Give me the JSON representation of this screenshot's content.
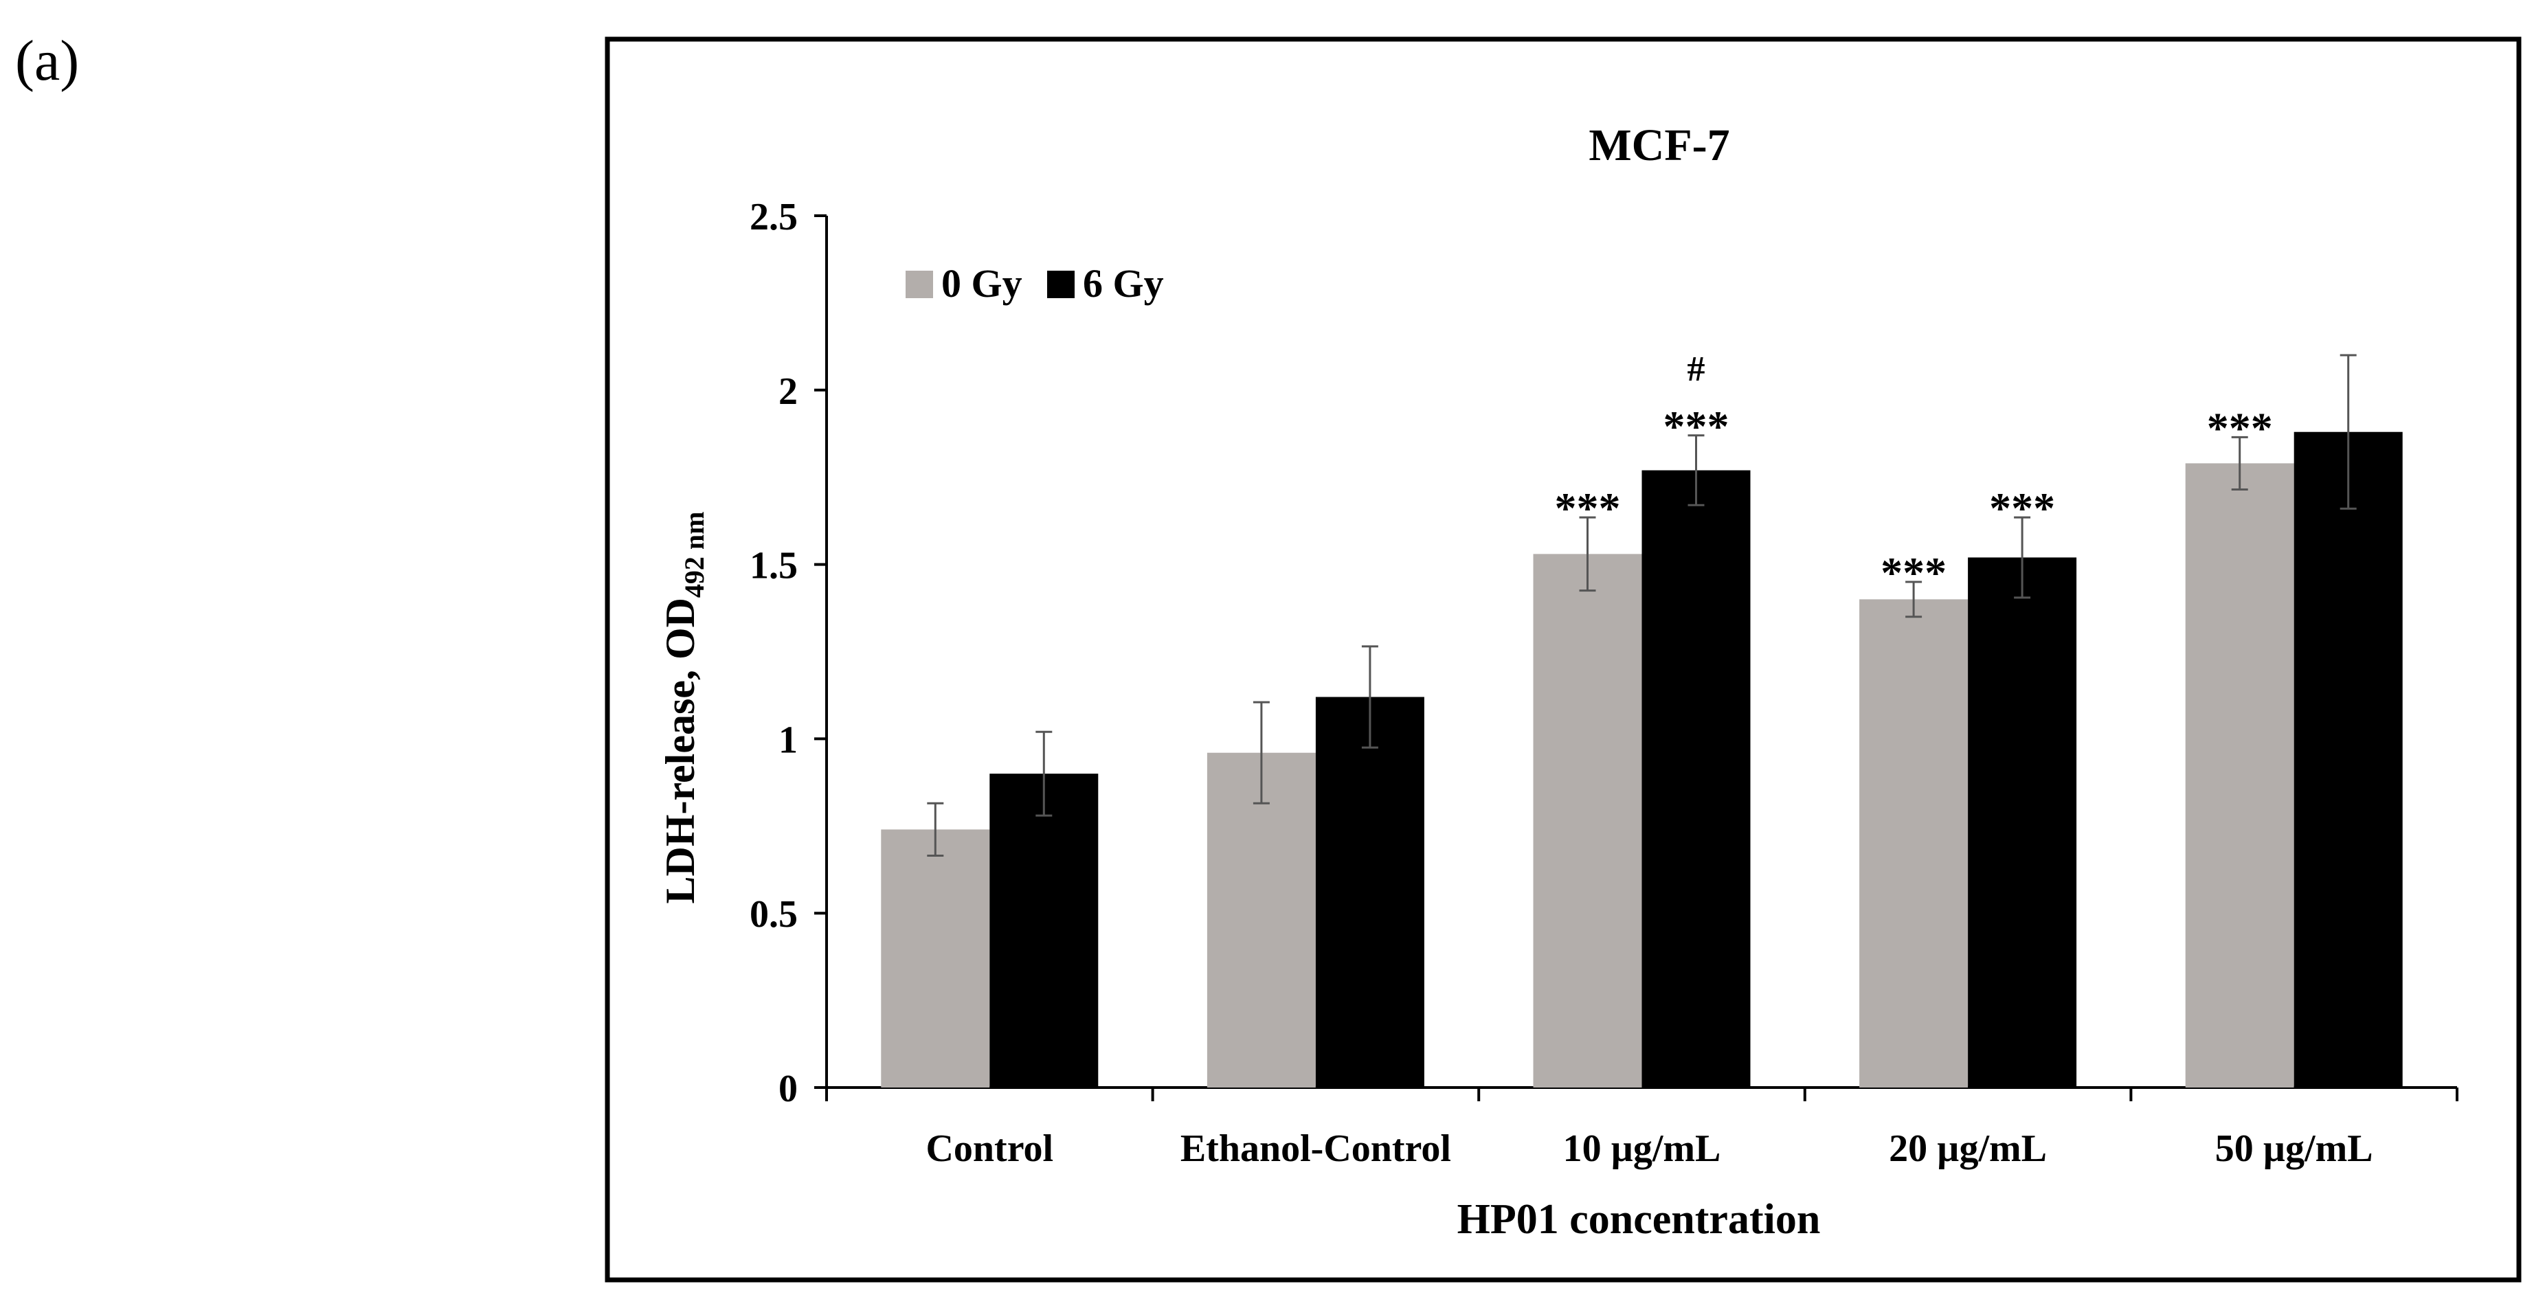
{
  "panel_label": "(a)",
  "chart_data": {
    "type": "bar",
    "title": "MCF-7",
    "xlabel": "HP01 concentration",
    "ylabel": "LDH-release, OD",
    "ylabel_subscript": "492 nm",
    "ylim": [
      0,
      2.5
    ],
    "yticks": [
      0,
      0.5,
      1,
      1.5,
      2,
      2.5
    ],
    "ytick_labels": [
      "0",
      "0.5",
      "1",
      "1.5",
      "2",
      "2.5"
    ],
    "grid": false,
    "legend_position": "top-left",
    "categories": [
      "Control",
      "Ethanol-Control",
      "10 µg/mL",
      "20 µg/mL",
      "50 µg/mL"
    ],
    "series": [
      {
        "name": "0 Gy",
        "color": "#b3aeab",
        "values": [
          0.74,
          0.96,
          1.53,
          1.4,
          1.79
        ],
        "errors": [
          0.075,
          0.145,
          0.105,
          0.05,
          0.075
        ],
        "annotations": [
          "",
          "",
          "***",
          "***",
          "***"
        ]
      },
      {
        "name": "6 Gy",
        "color": "#000000",
        "values": [
          0.9,
          1.12,
          1.77,
          1.52,
          1.88
        ],
        "errors": [
          0.12,
          0.145,
          0.1,
          0.115,
          0.22
        ],
        "annotations": [
          "",
          "",
          "#\n***",
          "***",
          ""
        ]
      }
    ]
  }
}
